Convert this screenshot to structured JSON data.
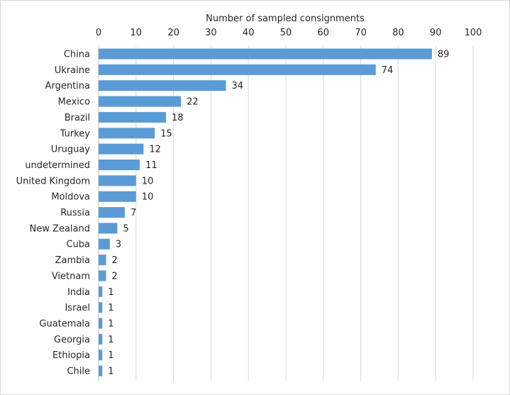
{
  "chart_data": {
    "type": "bar",
    "orientation": "horizontal",
    "title": "",
    "xlabel": "Number of sampled consignments",
    "ylabel": "",
    "xlim": [
      0,
      100
    ],
    "x_ticks": [
      0,
      10,
      20,
      30,
      40,
      50,
      60,
      70,
      80,
      90,
      100
    ],
    "x_axis_position": "top",
    "grid": true,
    "legend": "none",
    "bar_color": "#5b9bd5",
    "categories": [
      "China",
      "Ukraine",
      "Argentina",
      "Mexico",
      "Brazil",
      "Turkey",
      "Uruguay",
      "undetermined",
      "United Kingdom",
      "Moldova",
      "Russia",
      "New Zealand",
      "Cuba",
      "Zambia",
      "Vietnam",
      "India",
      "Israel",
      "Guatemala",
      "Georgia",
      "Ethiopia",
      "Chile"
    ],
    "values": [
      89,
      74,
      34,
      22,
      18,
      15,
      12,
      11,
      10,
      10,
      7,
      5,
      3,
      2,
      2,
      1,
      1,
      1,
      1,
      1,
      1
    ],
    "data_labels": true
  }
}
